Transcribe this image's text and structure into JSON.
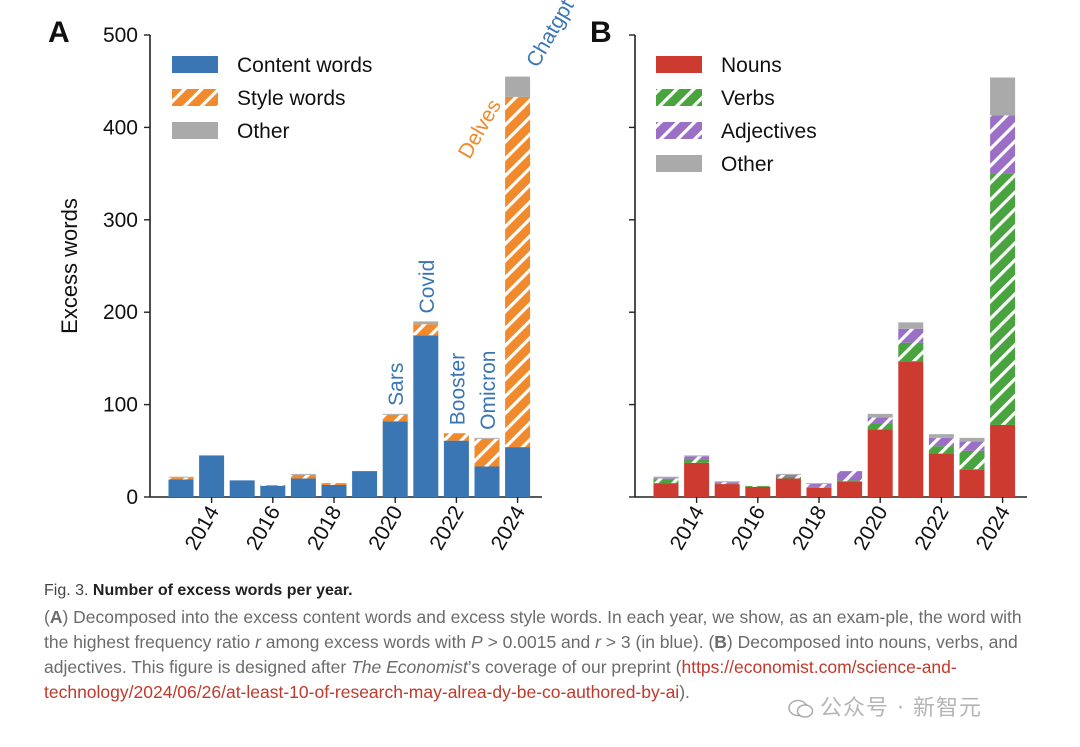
{
  "chart_data": [
    {
      "panel": "A",
      "type": "bar",
      "stacked": true,
      "ylabel": "Excess words",
      "ylim": [
        0,
        500
      ],
      "yticks": [
        0,
        100,
        200,
        300,
        400,
        500
      ],
      "xticks": [
        "2014",
        "2016",
        "2018",
        "2020",
        "2022",
        "2024"
      ],
      "categories": [
        "2013",
        "2014",
        "2015",
        "2016",
        "2017",
        "2018",
        "2019",
        "2020",
        "2021",
        "2022",
        "2023",
        "2024"
      ],
      "series": [
        {
          "name": "Content words",
          "color": "#3a75b4",
          "pattern": "solid",
          "values": [
            19,
            45,
            18,
            12,
            20,
            13,
            28,
            82,
            175,
            61,
            33,
            54
          ]
        },
        {
          "name": "Style words",
          "color": "#f08a2c",
          "pattern": "hatched",
          "values": [
            2,
            0,
            0,
            1,
            4,
            2,
            0,
            7,
            12,
            8,
            30,
            379
          ]
        },
        {
          "name": "Other",
          "color": "#aaaaaa",
          "pattern": "solid",
          "values": [
            1,
            0,
            0,
            0,
            1,
            0,
            0,
            1,
            3,
            0,
            1,
            22
          ]
        }
      ],
      "annotations": [
        {
          "text": "Sars",
          "year": "2020",
          "color": "#3a75b4"
        },
        {
          "text": "Covid",
          "year": "2021",
          "color": "#3a75b4"
        },
        {
          "text": "Booster",
          "year": "2022",
          "color": "#3a75b4"
        },
        {
          "text": "Omicron",
          "year": "2023",
          "color": "#3a75b4"
        },
        {
          "text": "Chatgpt",
          "year": "2024",
          "color": "#3a75b4"
        },
        {
          "text": "Delves",
          "year": "2024",
          "color": "#f08a2c"
        }
      ]
    },
    {
      "panel": "B",
      "type": "bar",
      "stacked": true,
      "ylim": [
        0,
        500
      ],
      "xticks": [
        "2014",
        "2016",
        "2018",
        "2020",
        "2022",
        "2024"
      ],
      "categories": [
        "2013",
        "2014",
        "2015",
        "2016",
        "2017",
        "2018",
        "2019",
        "2020",
        "2021",
        "2022",
        "2023",
        "2024"
      ],
      "series": [
        {
          "name": "Nouns",
          "color": "#cc3a30",
          "pattern": "solid",
          "values": [
            15,
            37,
            14,
            11,
            20,
            10,
            17,
            73,
            147,
            47,
            30,
            78
          ]
        },
        {
          "name": "Verbs",
          "color": "#49a33e",
          "pattern": "hatched",
          "values": [
            4,
            4,
            1,
            1,
            2,
            1,
            1,
            7,
            20,
            8,
            20,
            272
          ]
        },
        {
          "name": "Adjectives",
          "color": "#9a6fc5",
          "pattern": "hatched",
          "values": [
            1,
            3,
            1,
            0,
            2,
            3,
            10,
            6,
            15,
            9,
            10,
            63
          ]
        },
        {
          "name": "Other",
          "color": "#aaaaaa",
          "pattern": "solid",
          "values": [
            2,
            1,
            1,
            0,
            1,
            1,
            0,
            4,
            7,
            4,
            4,
            41
          ]
        }
      ]
    }
  ],
  "figure": {
    "panel_a_label": "A",
    "panel_b_label": "B"
  },
  "caption": {
    "fig_number": "Fig. 3.",
    "title": "Number of excess words per year.",
    "open_paren_a": "(",
    "panel_a": "A",
    "text_a": ") Decomposed into the excess content words and excess style words. In each year, we show, as an exam-ple, the word with the highest frequency ratio ",
    "r1": "r",
    "text_a2": " among excess words with ",
    "p": "P",
    "text_a3": " > 0.0015 and ",
    "r2": "r",
    "text_a4": " > 3 (in blue). (",
    "panel_b": "B",
    "text_b": ") Decomposed into nouns, verbs, and adjectives. This figure is designed after ",
    "economist": "The Economist",
    "text_b2": "’s coverage of our preprint (",
    "url": "https://economist.com/science-and-technology/2024/06/26/at-least-10-of-research-may-alrea-dy-be-co-authored-by-ai",
    "text_end": ")."
  },
  "watermark": {
    "text": "公众号 · 新智元"
  }
}
